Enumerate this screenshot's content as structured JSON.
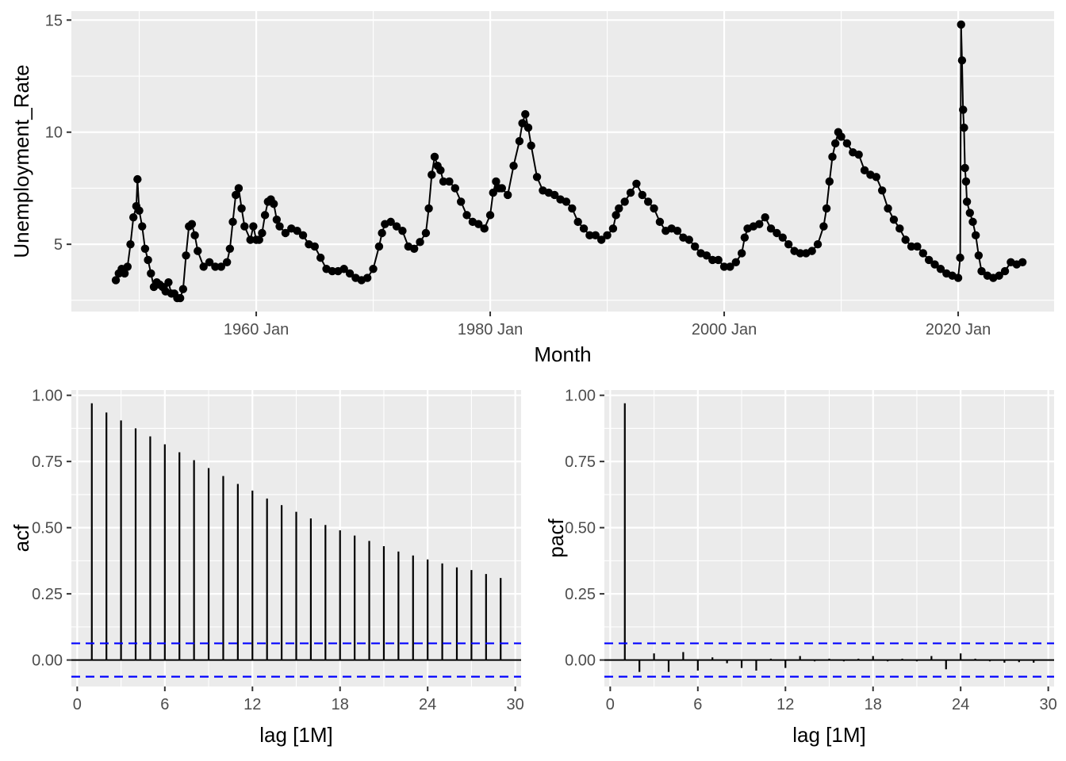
{
  "chart_data": [
    {
      "type": "line",
      "panel": "time-series",
      "xlabel": "Month",
      "ylabel": "Unemployment_Rate",
      "x_ticks": [
        "1960 Jan",
        "1980 Jan",
        "2000 Jan",
        "2020 Jan"
      ],
      "x_tick_values": [
        1960,
        1980,
        2000,
        2020
      ],
      "xlim": [
        1944.2,
        2028.2
      ],
      "y_ticks": [
        "5",
        "10",
        "15"
      ],
      "y_tick_values": [
        5,
        10,
        15
      ],
      "ylim": [
        2.0,
        15.4
      ],
      "markers": true,
      "grid": true,
      "series": [
        {
          "points": [
            [
              1948.0,
              3.4
            ],
            [
              1948.25,
              3.7
            ],
            [
              1948.5,
              3.9
            ],
            [
              1948.75,
              3.7
            ],
            [
              1949.0,
              4.0
            ],
            [
              1949.25,
              5.0
            ],
            [
              1949.5,
              6.2
            ],
            [
              1949.75,
              6.7
            ],
            [
              1949.85,
              7.9
            ],
            [
              1950.0,
              6.5
            ],
            [
              1950.25,
              5.8
            ],
            [
              1950.5,
              4.8
            ],
            [
              1950.75,
              4.3
            ],
            [
              1951.0,
              3.7
            ],
            [
              1951.25,
              3.1
            ],
            [
              1951.5,
              3.3
            ],
            [
              1951.75,
              3.2
            ],
            [
              1952.0,
              3.1
            ],
            [
              1952.25,
              2.9
            ],
            [
              1952.5,
              3.3
            ],
            [
              1952.75,
              2.8
            ],
            [
              1953.0,
              2.8
            ],
            [
              1953.25,
              2.6
            ],
            [
              1953.5,
              2.6
            ],
            [
              1953.75,
              3.0
            ],
            [
              1954.0,
              4.5
            ],
            [
              1954.25,
              5.8
            ],
            [
              1954.5,
              5.9
            ],
            [
              1954.75,
              5.4
            ],
            [
              1955.0,
              4.7
            ],
            [
              1955.5,
              4.0
            ],
            [
              1956.0,
              4.2
            ],
            [
              1956.5,
              4.0
            ],
            [
              1957.0,
              4.0
            ],
            [
              1957.5,
              4.2
            ],
            [
              1957.75,
              4.8
            ],
            [
              1958.0,
              6.0
            ],
            [
              1958.25,
              7.2
            ],
            [
              1958.5,
              7.5
            ],
            [
              1958.75,
              6.6
            ],
            [
              1959.0,
              5.8
            ],
            [
              1959.5,
              5.2
            ],
            [
              1959.75,
              5.8
            ],
            [
              1960.0,
              5.2
            ],
            [
              1960.25,
              5.2
            ],
            [
              1960.5,
              5.5
            ],
            [
              1960.75,
              6.3
            ],
            [
              1961.0,
              6.9
            ],
            [
              1961.25,
              7.0
            ],
            [
              1961.5,
              6.8
            ],
            [
              1961.75,
              6.1
            ],
            [
              1962.0,
              5.8
            ],
            [
              1962.5,
              5.5
            ],
            [
              1963.0,
              5.7
            ],
            [
              1963.5,
              5.6
            ],
            [
              1964.0,
              5.4
            ],
            [
              1964.5,
              5.0
            ],
            [
              1965.0,
              4.9
            ],
            [
              1965.5,
              4.4
            ],
            [
              1966.0,
              3.9
            ],
            [
              1966.5,
              3.8
            ],
            [
              1967.0,
              3.8
            ],
            [
              1967.5,
              3.9
            ],
            [
              1968.0,
              3.7
            ],
            [
              1968.5,
              3.5
            ],
            [
              1969.0,
              3.4
            ],
            [
              1969.5,
              3.5
            ],
            [
              1970.0,
              3.9
            ],
            [
              1970.5,
              4.9
            ],
            [
              1970.75,
              5.5
            ],
            [
              1971.0,
              5.9
            ],
            [
              1971.5,
              6.0
            ],
            [
              1972.0,
              5.8
            ],
            [
              1972.5,
              5.6
            ],
            [
              1973.0,
              4.9
            ],
            [
              1973.5,
              4.8
            ],
            [
              1974.0,
              5.1
            ],
            [
              1974.5,
              5.5
            ],
            [
              1974.75,
              6.6
            ],
            [
              1975.0,
              8.1
            ],
            [
              1975.25,
              8.9
            ],
            [
              1975.5,
              8.5
            ],
            [
              1975.75,
              8.3
            ],
            [
              1976.0,
              7.8
            ],
            [
              1976.5,
              7.8
            ],
            [
              1977.0,
              7.5
            ],
            [
              1977.5,
              6.9
            ],
            [
              1978.0,
              6.3
            ],
            [
              1978.5,
              6.0
            ],
            [
              1979.0,
              5.9
            ],
            [
              1979.5,
              5.7
            ],
            [
              1980.0,
              6.3
            ],
            [
              1980.25,
              7.3
            ],
            [
              1980.5,
              7.8
            ],
            [
              1980.75,
              7.5
            ],
            [
              1981.0,
              7.5
            ],
            [
              1981.5,
              7.2
            ],
            [
              1982.0,
              8.5
            ],
            [
              1982.5,
              9.6
            ],
            [
              1982.75,
              10.4
            ],
            [
              1983.0,
              10.8
            ],
            [
              1983.25,
              10.2
            ],
            [
              1983.5,
              9.4
            ],
            [
              1984.0,
              8.0
            ],
            [
              1984.5,
              7.4
            ],
            [
              1985.0,
              7.3
            ],
            [
              1985.5,
              7.2
            ],
            [
              1986.0,
              7.0
            ],
            [
              1986.5,
              6.9
            ],
            [
              1987.0,
              6.6
            ],
            [
              1987.5,
              6.0
            ],
            [
              1988.0,
              5.7
            ],
            [
              1988.5,
              5.4
            ],
            [
              1989.0,
              5.4
            ],
            [
              1989.5,
              5.2
            ],
            [
              1990.0,
              5.4
            ],
            [
              1990.5,
              5.7
            ],
            [
              1990.75,
              6.3
            ],
            [
              1991.0,
              6.6
            ],
            [
              1991.5,
              6.9
            ],
            [
              1992.0,
              7.3
            ],
            [
              1992.5,
              7.7
            ],
            [
              1993.0,
              7.2
            ],
            [
              1993.5,
              6.9
            ],
            [
              1994.0,
              6.6
            ],
            [
              1994.5,
              6.0
            ],
            [
              1995.0,
              5.6
            ],
            [
              1995.5,
              5.7
            ],
            [
              1996.0,
              5.6
            ],
            [
              1996.5,
              5.3
            ],
            [
              1997.0,
              5.2
            ],
            [
              1997.5,
              4.9
            ],
            [
              1998.0,
              4.6
            ],
            [
              1998.5,
              4.5
            ],
            [
              1999.0,
              4.3
            ],
            [
              1999.5,
              4.3
            ],
            [
              2000.0,
              4.0
            ],
            [
              2000.5,
              4.0
            ],
            [
              2001.0,
              4.2
            ],
            [
              2001.5,
              4.6
            ],
            [
              2001.75,
              5.3
            ],
            [
              2002.0,
              5.7
            ],
            [
              2002.5,
              5.8
            ],
            [
              2003.0,
              5.9
            ],
            [
              2003.5,
              6.2
            ],
            [
              2004.0,
              5.7
            ],
            [
              2004.5,
              5.5
            ],
            [
              2005.0,
              5.3
            ],
            [
              2005.5,
              5.0
            ],
            [
              2006.0,
              4.7
            ],
            [
              2006.5,
              4.6
            ],
            [
              2007.0,
              4.6
            ],
            [
              2007.5,
              4.7
            ],
            [
              2008.0,
              5.0
            ],
            [
              2008.5,
              5.8
            ],
            [
              2008.75,
              6.6
            ],
            [
              2009.0,
              7.8
            ],
            [
              2009.25,
              8.9
            ],
            [
              2009.5,
              9.5
            ],
            [
              2009.75,
              10.0
            ],
            [
              2010.0,
              9.8
            ],
            [
              2010.5,
              9.5
            ],
            [
              2011.0,
              9.1
            ],
            [
              2011.5,
              9.0
            ],
            [
              2012.0,
              8.3
            ],
            [
              2012.5,
              8.1
            ],
            [
              2013.0,
              8.0
            ],
            [
              2013.5,
              7.4
            ],
            [
              2014.0,
              6.6
            ],
            [
              2014.5,
              6.1
            ],
            [
              2015.0,
              5.7
            ],
            [
              2015.5,
              5.2
            ],
            [
              2016.0,
              4.9
            ],
            [
              2016.5,
              4.9
            ],
            [
              2017.0,
              4.6
            ],
            [
              2017.5,
              4.3
            ],
            [
              2018.0,
              4.1
            ],
            [
              2018.5,
              3.9
            ],
            [
              2019.0,
              3.7
            ],
            [
              2019.5,
              3.6
            ],
            [
              2020.0,
              3.5
            ],
            [
              2020.17,
              4.4
            ],
            [
              2020.25,
              14.8
            ],
            [
              2020.33,
              13.2
            ],
            [
              2020.42,
              11.0
            ],
            [
              2020.5,
              10.2
            ],
            [
              2020.58,
              8.4
            ],
            [
              2020.67,
              7.8
            ],
            [
              2020.75,
              6.9
            ],
            [
              2021.0,
              6.4
            ],
            [
              2021.25,
              6.0
            ],
            [
              2021.5,
              5.4
            ],
            [
              2021.75,
              4.5
            ],
            [
              2022.0,
              3.8
            ],
            [
              2022.5,
              3.6
            ],
            [
              2023.0,
              3.5
            ],
            [
              2023.5,
              3.6
            ],
            [
              2024.0,
              3.8
            ],
            [
              2024.5,
              4.2
            ],
            [
              2025.0,
              4.1
            ],
            [
              2025.5,
              4.2
            ]
          ]
        }
      ]
    },
    {
      "type": "bar",
      "panel": "acf",
      "xlabel": "lag [1M]",
      "ylabel": "acf",
      "x_ticks": [
        "0",
        "6",
        "12",
        "18",
        "24",
        "30"
      ],
      "x_tick_values": [
        0,
        6,
        12,
        18,
        24,
        30
      ],
      "xlim": [
        -0.4,
        30.4
      ],
      "y_ticks": [
        "0.00",
        "0.25",
        "0.50",
        "0.75",
        "1.00"
      ],
      "y_tick_values": [
        0,
        0.25,
        0.5,
        0.75,
        1.0
      ],
      "ylim": [
        -0.1,
        1.02
      ],
      "confidence_bound": 0.063,
      "grid": true,
      "lags": [
        1,
        2,
        3,
        4,
        5,
        6,
        7,
        8,
        9,
        10,
        11,
        12,
        13,
        14,
        15,
        16,
        17,
        18,
        19,
        20,
        21,
        22,
        23,
        24,
        25,
        26,
        27,
        28,
        29
      ],
      "values": [
        0.97,
        0.935,
        0.905,
        0.875,
        0.845,
        0.815,
        0.785,
        0.755,
        0.725,
        0.695,
        0.665,
        0.64,
        0.61,
        0.585,
        0.56,
        0.535,
        0.51,
        0.49,
        0.47,
        0.45,
        0.43,
        0.41,
        0.395,
        0.38,
        0.365,
        0.35,
        0.34,
        0.325,
        0.31
      ]
    },
    {
      "type": "bar",
      "panel": "pacf",
      "xlabel": "lag [1M]",
      "ylabel": "pacf",
      "x_ticks": [
        "0",
        "6",
        "12",
        "18",
        "24",
        "30"
      ],
      "x_tick_values": [
        0,
        6,
        12,
        18,
        24,
        30
      ],
      "xlim": [
        -0.4,
        30.4
      ],
      "y_ticks": [
        "0.00",
        "0.25",
        "0.50",
        "0.75",
        "1.00"
      ],
      "y_tick_values": [
        0,
        0.25,
        0.5,
        0.75,
        1.0
      ],
      "ylim": [
        -0.1,
        1.02
      ],
      "confidence_bound": 0.063,
      "grid": true,
      "lags": [
        1,
        2,
        3,
        4,
        5,
        6,
        7,
        8,
        9,
        10,
        11,
        12,
        13,
        14,
        15,
        16,
        17,
        18,
        19,
        20,
        21,
        22,
        23,
        24,
        25,
        26,
        27,
        28,
        29
      ],
      "values": [
        0.97,
        -0.045,
        0.025,
        -0.045,
        0.03,
        -0.04,
        0.01,
        -0.012,
        -0.03,
        -0.04,
        0.005,
        -0.03,
        0.015,
        -0.005,
        0.005,
        -0.005,
        0.005,
        0.015,
        -0.005,
        0.005,
        -0.005,
        0.015,
        -0.035,
        0.025,
        0.005,
        -0.005,
        -0.01,
        -0.008,
        -0.01
      ]
    }
  ]
}
